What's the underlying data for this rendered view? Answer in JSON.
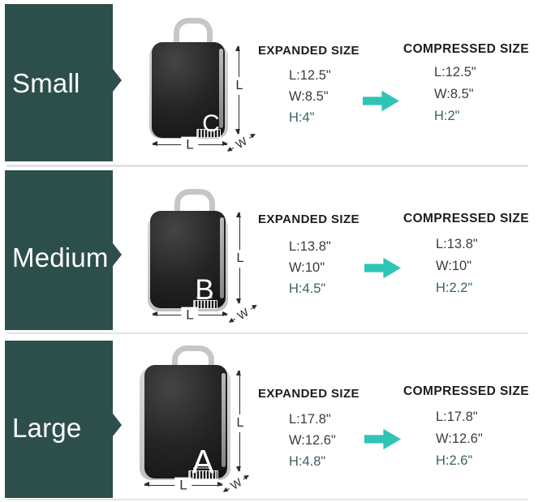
{
  "colors": {
    "panel": "#2D4F4B",
    "arrow": "#2FC4B6",
    "h_text": "#3B6062",
    "divider": "#E2E2E2",
    "dim": "#2B2B2B"
  },
  "rows": [
    {
      "size_label": "Small",
      "bag_letter": "C",
      "dims": {
        "side": "L",
        "bottom": "L",
        "depth": "W"
      },
      "expanded": {
        "title": "EXPANDED SIZE",
        "length": "L:12.5\"",
        "width": "W:8.5\"",
        "height": "H:4\""
      },
      "compressed": {
        "title": "COMPRESSED SIZE",
        "length": "L:12.5\"",
        "width": "W:8.5\"",
        "height": "H:2\""
      }
    },
    {
      "size_label": "Medium",
      "bag_letter": "B",
      "dims": {
        "side": "L",
        "bottom": "L",
        "depth": "W"
      },
      "expanded": {
        "title": "EXPANDED SIZE",
        "length": "L:13.8\"",
        "width": "W:10\"",
        "height": "H:4.5\""
      },
      "compressed": {
        "title": "COMPRESSED SIZE",
        "length": "L:13.8\"",
        "width": "W:10\"",
        "height": "H:2.2\""
      }
    },
    {
      "size_label": "Large",
      "bag_letter": "A",
      "dims": {
        "side": "L",
        "bottom": "L",
        "depth": "W"
      },
      "expanded": {
        "title": "EXPANDED SIZE",
        "length": "L:17.8\"",
        "width": "W:12.6\"",
        "height": "H:4.8\""
      },
      "compressed": {
        "title": "COMPRESSED SIZE",
        "length": "L:17.8\"",
        "width": "W:12.6\"",
        "height": "H:2.6\""
      }
    }
  ]
}
